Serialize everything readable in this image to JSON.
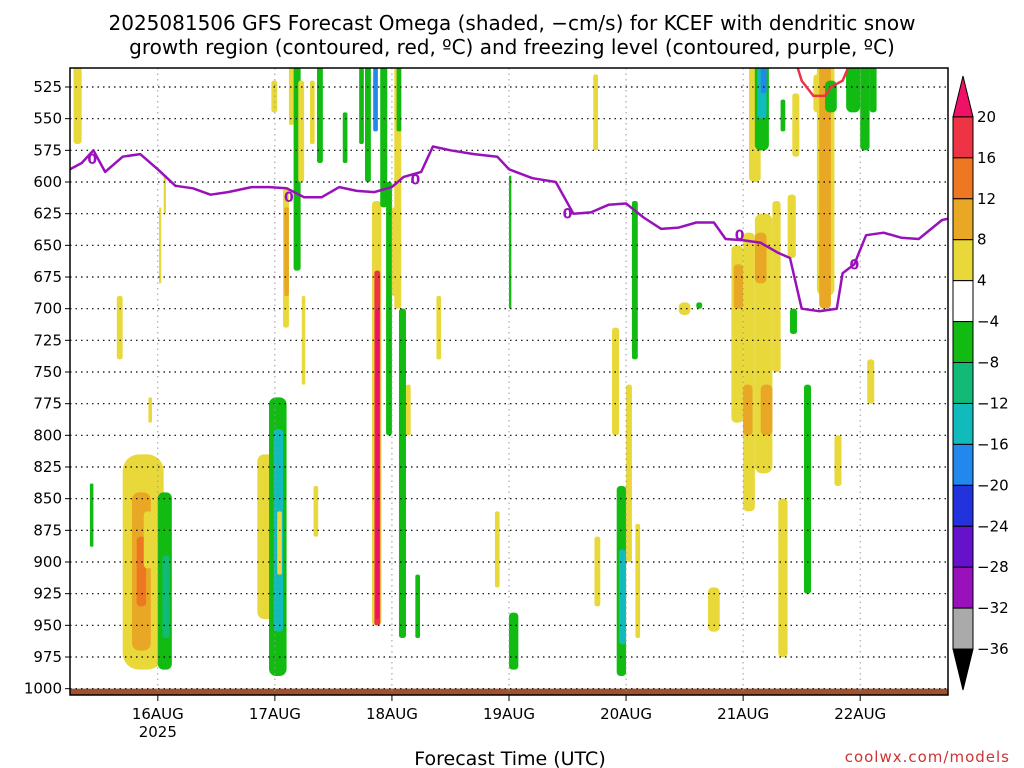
{
  "chart_data": {
    "type": "heatmap",
    "title_line1": "2025081506 GFS Forecast Omega (shaded, −cm/s) for KCEF with dendritic snow",
    "title_line2": "growth region (contoured, red, ºC) and freezing level (contoured, purple, ºC)",
    "xlabel": "Forecast Time (UTC)",
    "credit": "coolwx.com/models",
    "x_ticks": [
      "16AUG",
      "17AUG",
      "18AUG",
      "19AUG",
      "20AUG",
      "21AUG",
      "22AUG"
    ],
    "x_year": "2025",
    "x_range_days": [
      -0.75,
      6.75
    ],
    "y_ticks": [
      525,
      550,
      575,
      600,
      625,
      650,
      675,
      700,
      725,
      750,
      775,
      800,
      825,
      850,
      875,
      900,
      925,
      950,
      975,
      1000
    ],
    "y_range_hpa": [
      510,
      1005
    ],
    "y_scale": "linear-pressure-inverted",
    "grid": true,
    "colorbar": {
      "labels": [
        "20",
        "16",
        "12",
        "8",
        "4",
        "−4",
        "−8",
        "−12",
        "−16",
        "−20",
        "−24",
        "−28",
        "−32",
        "−36"
      ],
      "colors": [
        "#ee1166",
        "#ee3344",
        "#ee7722",
        "#e8a825",
        "#e8d83a",
        "#ffffff",
        "#11bb11",
        "#11bb77",
        "#11bbbb",
        "#2288ee",
        "#2233dd",
        "#6611cc",
        "#9911bb",
        "#aaaaaa",
        "#000000"
      ]
    },
    "freezing_level": {
      "color": "#9911bb",
      "label": "0",
      "points": [
        [
          -0.75,
          590
        ],
        [
          -0.65,
          585
        ],
        [
          -0.55,
          575
        ],
        [
          -0.45,
          592
        ],
        [
          -0.3,
          580
        ],
        [
          -0.15,
          578
        ],
        [
          0,
          590
        ],
        [
          0.15,
          603
        ],
        [
          0.3,
          605
        ],
        [
          0.45,
          610
        ],
        [
          0.6,
          608
        ],
        [
          0.8,
          604
        ],
        [
          0.95,
          604
        ],
        [
          1.1,
          605
        ],
        [
          1.25,
          612
        ],
        [
          1.4,
          612
        ],
        [
          1.55,
          604
        ],
        [
          1.7,
          607
        ],
        [
          1.85,
          608
        ],
        [
          2.0,
          604
        ],
        [
          2.1,
          596
        ],
        [
          2.25,
          592
        ],
        [
          2.35,
          572
        ],
        [
          2.5,
          575
        ],
        [
          2.7,
          578
        ],
        [
          2.9,
          580
        ],
        [
          3.0,
          590
        ],
        [
          3.2,
          597
        ],
        [
          3.4,
          600
        ],
        [
          3.55,
          625
        ],
        [
          3.7,
          624
        ],
        [
          3.85,
          618
        ],
        [
          4.0,
          617
        ],
        [
          4.15,
          628
        ],
        [
          4.3,
          637
        ],
        [
          4.45,
          636
        ],
        [
          4.6,
          632
        ],
        [
          4.75,
          632
        ],
        [
          4.85,
          645
        ],
        [
          5.0,
          646
        ],
        [
          5.15,
          648
        ],
        [
          5.3,
          656
        ],
        [
          5.4,
          660
        ],
        [
          5.5,
          700
        ],
        [
          5.65,
          702
        ],
        [
          5.8,
          700
        ],
        [
          5.85,
          672
        ],
        [
          5.95,
          665
        ],
        [
          6.05,
          642
        ],
        [
          6.2,
          640
        ],
        [
          6.35,
          644
        ],
        [
          6.5,
          645
        ],
        [
          6.7,
          630
        ],
        [
          6.75,
          629
        ]
      ]
    },
    "dgz_contour": {
      "color": "#ee3344",
      "points": [
        [
          5.45,
          505
        ],
        [
          5.5,
          520
        ],
        [
          5.6,
          532
        ],
        [
          5.7,
          532
        ],
        [
          5.75,
          525
        ],
        [
          5.85,
          520
        ],
        [
          5.92,
          505
        ]
      ]
    },
    "terrain_pressure_hpa": 1000,
    "omega_regions": [
      {
        "x0": -0.72,
        "x1": -0.65,
        "p0": 505,
        "p1": 570,
        "v": 5
      },
      {
        "x0": -0.58,
        "x1": -0.55,
        "p0": 838,
        "p1": 888,
        "v": -6
      },
      {
        "x0": -0.35,
        "x1": -0.3,
        "p0": 690,
        "p1": 740,
        "v": 5
      },
      {
        "x0": -0.3,
        "x1": 0.05,
        "p0": 815,
        "p1": 985,
        "v": 5
      },
      {
        "x0": -0.22,
        "x1": -0.06,
        "p0": 845,
        "p1": 970,
        "v": 9
      },
      {
        "x0": -0.18,
        "x1": -0.1,
        "p0": 880,
        "p1": 935,
        "v": 13
      },
      {
        "x0": -0.12,
        "x1": -0.04,
        "p0": 860,
        "p1": 905,
        "v": 5
      },
      {
        "x0": 0.0,
        "x1": 0.12,
        "p0": 845,
        "p1": 985,
        "v": -6
      },
      {
        "x0": 0.04,
        "x1": 0.1,
        "p0": 895,
        "p1": 960,
        "v": -10
      },
      {
        "x0": -0.08,
        "x1": -0.05,
        "p0": 770,
        "p1": 790,
        "v": 5
      },
      {
        "x0": 0.01,
        "x1": 0.03,
        "p0": 620,
        "p1": 680,
        "v": 5
      },
      {
        "x0": 0.05,
        "x1": 0.07,
        "p0": 595,
        "p1": 625,
        "v": 5
      },
      {
        "x0": 0.85,
        "x1": 1.0,
        "p0": 815,
        "p1": 945,
        "v": 5
      },
      {
        "x0": 0.95,
        "x1": 1.1,
        "p0": 770,
        "p1": 990,
        "v": -6
      },
      {
        "x0": 0.99,
        "x1": 1.07,
        "p0": 795,
        "p1": 955,
        "v": -12
      },
      {
        "x0": 1.02,
        "x1": 1.06,
        "p0": 860,
        "p1": 910,
        "v": 5
      },
      {
        "x0": 0.97,
        "x1": 1.02,
        "p0": 520,
        "p1": 545,
        "v": 5
      },
      {
        "x0": 1.07,
        "x1": 1.12,
        "p0": 605,
        "p1": 715,
        "v": 5
      },
      {
        "x0": 1.08,
        "x1": 1.12,
        "p0": 620,
        "p1": 690,
        "v": 9
      },
      {
        "x0": 1.12,
        "x1": 1.16,
        "p0": 505,
        "p1": 555,
        "v": 5
      },
      {
        "x0": 1.16,
        "x1": 1.22,
        "p0": 505,
        "p1": 670,
        "v": -6
      },
      {
        "x0": 1.2,
        "x1": 1.25,
        "p0": 520,
        "p1": 600,
        "v": 5
      },
      {
        "x0": 1.23,
        "x1": 1.26,
        "p0": 690,
        "p1": 760,
        "v": 5
      },
      {
        "x0": 1.3,
        "x1": 1.34,
        "p0": 520,
        "p1": 570,
        "v": 5
      },
      {
        "x0": 1.33,
        "x1": 1.37,
        "p0": 840,
        "p1": 880,
        "v": 5
      },
      {
        "x0": 1.36,
        "x1": 1.41,
        "p0": 505,
        "p1": 585,
        "v": -6
      },
      {
        "x0": 1.58,
        "x1": 1.62,
        "p0": 545,
        "p1": 585,
        "v": -6
      },
      {
        "x0": 1.72,
        "x1": 1.76,
        "p0": 505,
        "p1": 570,
        "v": -6
      },
      {
        "x0": 1.77,
        "x1": 1.82,
        "p0": 505,
        "p1": 600,
        "v": -6
      },
      {
        "x0": 1.84,
        "x1": 1.88,
        "p0": 505,
        "p1": 560,
        "v": -16
      },
      {
        "x0": 1.83,
        "x1": 1.91,
        "p0": 615,
        "p1": 950,
        "v": 5
      },
      {
        "x0": 1.85,
        "x1": 1.9,
        "p0": 670,
        "p1": 950,
        "v": 16
      },
      {
        "x0": 1.86,
        "x1": 1.89,
        "p0": 700,
        "p1": 945,
        "v": 20
      },
      {
        "x0": 1.9,
        "x1": 1.96,
        "p0": 505,
        "p1": 620,
        "v": -6
      },
      {
        "x0": 1.95,
        "x1": 2.0,
        "p0": 600,
        "p1": 800,
        "v": -6
      },
      {
        "x0": 2.0,
        "x1": 2.04,
        "p0": 620,
        "p1": 690,
        "v": 5
      },
      {
        "x0": 2.02,
        "x1": 2.08,
        "p0": 505,
        "p1": 700,
        "v": 5
      },
      {
        "x0": 2.04,
        "x1": 2.08,
        "p0": 510,
        "p1": 560,
        "v": -6
      },
      {
        "x0": 2.06,
        "x1": 2.12,
        "p0": 700,
        "p1": 960,
        "v": -6
      },
      {
        "x0": 2.12,
        "x1": 2.16,
        "p0": 760,
        "p1": 800,
        "v": 5
      },
      {
        "x0": 2.2,
        "x1": 2.24,
        "p0": 910,
        "p1": 960,
        "v": -6
      },
      {
        "x0": 2.38,
        "x1": 2.42,
        "p0": 690,
        "p1": 740,
        "v": 5
      },
      {
        "x0": 2.88,
        "x1": 2.92,
        "p0": 860,
        "p1": 920,
        "v": 5
      },
      {
        "x0": 3.0,
        "x1": 3.02,
        "p0": 595,
        "p1": 700,
        "v": -6
      },
      {
        "x0": 3.0,
        "x1": 3.08,
        "p0": 940,
        "p1": 985,
        "v": -6
      },
      {
        "x0": 3.72,
        "x1": 3.76,
        "p0": 515,
        "p1": 575,
        "v": 5
      },
      {
        "x0": 3.73,
        "x1": 3.78,
        "p0": 880,
        "p1": 935,
        "v": 5
      },
      {
        "x0": 3.88,
        "x1": 3.94,
        "p0": 715,
        "p1": 800,
        "v": 5
      },
      {
        "x0": 3.92,
        "x1": 4.0,
        "p0": 840,
        "p1": 990,
        "v": -6
      },
      {
        "x0": 3.94,
        "x1": 4.0,
        "p0": 890,
        "p1": 965,
        "v": -12
      },
      {
        "x0": 4.0,
        "x1": 4.05,
        "p0": 760,
        "p1": 900,
        "v": 5
      },
      {
        "x0": 4.05,
        "x1": 4.1,
        "p0": 615,
        "p1": 740,
        "v": -6
      },
      {
        "x0": 4.08,
        "x1": 4.12,
        "p0": 870,
        "p1": 960,
        "v": 5
      },
      {
        "x0": 4.45,
        "x1": 4.55,
        "p0": 695,
        "p1": 705,
        "v": 5
      },
      {
        "x0": 4.6,
        "x1": 4.65,
        "p0": 695,
        "p1": 700,
        "v": -6
      },
      {
        "x0": 4.7,
        "x1": 4.8,
        "p0": 920,
        "p1": 955,
        "v": 5
      },
      {
        "x0": 4.9,
        "x1": 5.0,
        "p0": 650,
        "p1": 790,
        "v": 5
      },
      {
        "x0": 4.92,
        "x1": 5.0,
        "p0": 665,
        "p1": 700,
        "v": 9
      },
      {
        "x0": 5.0,
        "x1": 5.1,
        "p0": 640,
        "p1": 860,
        "v": 5
      },
      {
        "x0": 5.0,
        "x1": 5.08,
        "p0": 760,
        "p1": 800,
        "v": 9
      },
      {
        "x0": 5.05,
        "x1": 5.15,
        "p0": 505,
        "p1": 600,
        "v": 5
      },
      {
        "x0": 5.1,
        "x1": 5.22,
        "p0": 505,
        "p1": 575,
        "v": -6
      },
      {
        "x0": 5.12,
        "x1": 5.2,
        "p0": 505,
        "p1": 550,
        "v": -12
      },
      {
        "x0": 5.15,
        "x1": 5.2,
        "p0": 505,
        "p1": 530,
        "v": -16
      },
      {
        "x0": 5.1,
        "x1": 5.25,
        "p0": 625,
        "p1": 830,
        "v": 5
      },
      {
        "x0": 5.1,
        "x1": 5.2,
        "p0": 640,
        "p1": 680,
        "v": 9
      },
      {
        "x0": 5.15,
        "x1": 5.25,
        "p0": 760,
        "p1": 800,
        "v": 9
      },
      {
        "x0": 5.25,
        "x1": 5.32,
        "p0": 615,
        "p1": 750,
        "v": 5
      },
      {
        "x0": 5.3,
        "x1": 5.38,
        "p0": 850,
        "p1": 975,
        "v": 5
      },
      {
        "x0": 5.32,
        "x1": 5.36,
        "p0": 535,
        "p1": 560,
        "v": -6
      },
      {
        "x0": 5.4,
        "x1": 5.46,
        "p0": 700,
        "p1": 720,
        "v": -6
      },
      {
        "x0": 5.42,
        "x1": 5.48,
        "p0": 530,
        "p1": 580,
        "v": 5
      },
      {
        "x0": 5.38,
        "x1": 5.45,
        "p0": 610,
        "p1": 660,
        "v": 5
      },
      {
        "x0": 5.52,
        "x1": 5.58,
        "p0": 760,
        "p1": 925,
        "v": -6
      },
      {
        "x0": 5.6,
        "x1": 5.68,
        "p0": 515,
        "p1": 545,
        "v": 5
      },
      {
        "x0": 5.63,
        "x1": 5.78,
        "p0": 505,
        "p1": 690,
        "v": 5
      },
      {
        "x0": 5.65,
        "x1": 5.75,
        "p0": 505,
        "p1": 700,
        "v": 9
      },
      {
        "x0": 5.7,
        "x1": 5.8,
        "p0": 520,
        "p1": 545,
        "v": -6
      },
      {
        "x0": 5.78,
        "x1": 5.84,
        "p0": 800,
        "p1": 840,
        "v": 5
      },
      {
        "x0": 5.88,
        "x1": 5.92,
        "p0": 510,
        "p1": 525,
        "v": -6
      },
      {
        "x0": 5.88,
        "x1": 6.0,
        "p0": 505,
        "p1": 545,
        "v": -6
      },
      {
        "x0": 6.0,
        "x1": 6.08,
        "p0": 505,
        "p1": 575,
        "v": -6
      },
      {
        "x0": 6.06,
        "x1": 6.12,
        "p0": 740,
        "p1": 775,
        "v": 5
      },
      {
        "x0": 6.08,
        "x1": 6.14,
        "p0": 505,
        "p1": 545,
        "v": -6
      }
    ]
  }
}
